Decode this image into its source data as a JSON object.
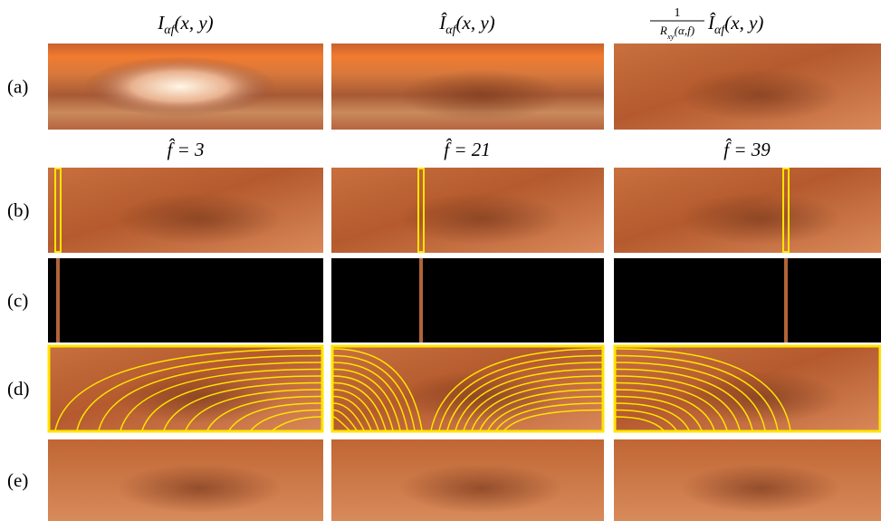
{
  "columns": [
    {
      "base": "I",
      "sub": "αf",
      "args": "(x, y)"
    },
    {
      "base": "Î",
      "sub": "αf",
      "args": "(x, y)"
    },
    {
      "numerator": "1",
      "denominator": {
        "base": "R",
        "sub": "xy",
        "args": "(α,f)"
      },
      "base": "Î",
      "sub": "αf",
      "args": "(x, y)"
    }
  ],
  "frequency_labels": [
    "f̂ = 3",
    "f̂ = 21",
    "f̂ = 39"
  ],
  "row_labels": [
    "(a)",
    "(b)",
    "(c)",
    "(d)",
    "(e)"
  ]
}
